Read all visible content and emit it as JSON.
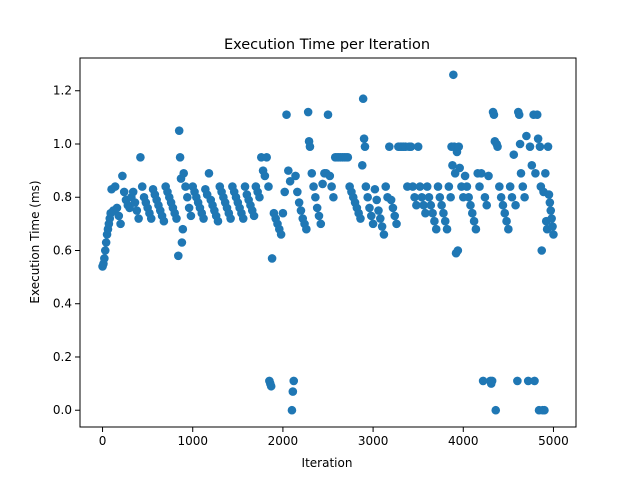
{
  "chart_data": {
    "type": "scatter",
    "title": "Execution Time per Iteration",
    "xlabel": "Iteration",
    "ylabel": "Execution Time (ms)",
    "xlim": [
      -250,
      5250
    ],
    "ylim": [
      -0.063,
      1.323
    ],
    "x_ticks": [
      0,
      1000,
      2000,
      3000,
      4000,
      5000
    ],
    "y_ticks": [
      0.0,
      0.2,
      0.4,
      0.6,
      0.8,
      1.0,
      1.2
    ],
    "x_tick_labels": [
      "0",
      "1000",
      "2000",
      "3000",
      "4000",
      "5000"
    ],
    "y_tick_labels": [
      "0.0",
      "0.2",
      "0.4",
      "0.6",
      "0.8",
      "1.0",
      "1.2"
    ],
    "grid": false,
    "marker_color": "#1f77b4",
    "series": [
      {
        "name": "",
        "points": [
          [
            0,
            0.54
          ],
          [
            10,
            0.55
          ],
          [
            20,
            0.57
          ],
          [
            30,
            0.6
          ],
          [
            40,
            0.63
          ],
          [
            50,
            0.66
          ],
          [
            60,
            0.68
          ],
          [
            70,
            0.7
          ],
          [
            80,
            0.72
          ],
          [
            90,
            0.74
          ],
          [
            100,
            0.83
          ],
          [
            120,
            0.75
          ],
          [
            140,
            0.84
          ],
          [
            160,
            0.76
          ],
          [
            180,
            0.73
          ],
          [
            200,
            0.7
          ],
          [
            220,
            0.88
          ],
          [
            240,
            0.82
          ],
          [
            260,
            0.79
          ],
          [
            280,
            0.77
          ],
          [
            300,
            0.76
          ],
          [
            320,
            0.8
          ],
          [
            340,
            0.82
          ],
          [
            360,
            0.78
          ],
          [
            380,
            0.75
          ],
          [
            400,
            0.72
          ],
          [
            420,
            0.95
          ],
          [
            440,
            0.84
          ],
          [
            460,
            0.8
          ],
          [
            480,
            0.78
          ],
          [
            500,
            0.76
          ],
          [
            520,
            0.74
          ],
          [
            540,
            0.72
          ],
          [
            560,
            0.83
          ],
          [
            580,
            0.81
          ],
          [
            600,
            0.79
          ],
          [
            620,
            0.77
          ],
          [
            640,
            0.75
          ],
          [
            660,
            0.73
          ],
          [
            680,
            0.71
          ],
          [
            700,
            0.84
          ],
          [
            720,
            0.82
          ],
          [
            740,
            0.8
          ],
          [
            760,
            0.78
          ],
          [
            780,
            0.76
          ],
          [
            800,
            0.74
          ],
          [
            820,
            0.72
          ],
          [
            840,
            0.58
          ],
          [
            850,
            1.05
          ],
          [
            860,
            0.95
          ],
          [
            870,
            0.87
          ],
          [
            880,
            0.63
          ],
          [
            890,
            0.68
          ],
          [
            900,
            0.89
          ],
          [
            920,
            0.84
          ],
          [
            940,
            0.8
          ],
          [
            960,
            0.76
          ],
          [
            980,
            0.73
          ],
          [
            1000,
            0.84
          ],
          [
            1020,
            0.82
          ],
          [
            1040,
            0.8
          ],
          [
            1060,
            0.78
          ],
          [
            1080,
            0.76
          ],
          [
            1100,
            0.74
          ],
          [
            1120,
            0.72
          ],
          [
            1140,
            0.83
          ],
          [
            1160,
            0.81
          ],
          [
            1180,
            0.89
          ],
          [
            1200,
            0.79
          ],
          [
            1220,
            0.77
          ],
          [
            1240,
            0.75
          ],
          [
            1260,
            0.73
          ],
          [
            1280,
            0.71
          ],
          [
            1300,
            0.84
          ],
          [
            1320,
            0.82
          ],
          [
            1340,
            0.8
          ],
          [
            1360,
            0.78
          ],
          [
            1380,
            0.76
          ],
          [
            1400,
            0.74
          ],
          [
            1420,
            0.72
          ],
          [
            1440,
            0.84
          ],
          [
            1460,
            0.82
          ],
          [
            1480,
            0.8
          ],
          [
            1500,
            0.78
          ],
          [
            1520,
            0.76
          ],
          [
            1540,
            0.74
          ],
          [
            1560,
            0.72
          ],
          [
            1580,
            0.84
          ],
          [
            1600,
            0.81
          ],
          [
            1620,
            0.79
          ],
          [
            1640,
            0.77
          ],
          [
            1660,
            0.75
          ],
          [
            1680,
            0.73
          ],
          [
            1700,
            0.84
          ],
          [
            1720,
            0.82
          ],
          [
            1740,
            0.8
          ],
          [
            1760,
            0.95
          ],
          [
            1780,
            0.9
          ],
          [
            1800,
            0.88
          ],
          [
            1820,
            0.95
          ],
          [
            1840,
            0.84
          ],
          [
            1850,
            0.11
          ],
          [
            1860,
            0.1
          ],
          [
            1870,
            0.09
          ],
          [
            1880,
            0.57
          ],
          [
            1900,
            0.74
          ],
          [
            1920,
            0.72
          ],
          [
            1940,
            0.7
          ],
          [
            1960,
            0.68
          ],
          [
            1980,
            0.66
          ],
          [
            2000,
            0.74
          ],
          [
            2020,
            0.82
          ],
          [
            2040,
            1.11
          ],
          [
            2060,
            0.9
          ],
          [
            2080,
            0.86
          ],
          [
            2100,
            0.0
          ],
          [
            2110,
            0.07
          ],
          [
            2120,
            0.11
          ],
          [
            2140,
            0.88
          ],
          [
            2160,
            0.82
          ],
          [
            2180,
            0.78
          ],
          [
            2200,
            0.75
          ],
          [
            2220,
            0.72
          ],
          [
            2240,
            0.7
          ],
          [
            2260,
            0.68
          ],
          [
            2280,
            1.12
          ],
          [
            2290,
            1.01
          ],
          [
            2300,
            0.99
          ],
          [
            2320,
            0.89
          ],
          [
            2340,
            0.84
          ],
          [
            2360,
            0.8
          ],
          [
            2380,
            0.76
          ],
          [
            2400,
            0.73
          ],
          [
            2420,
            0.7
          ],
          [
            2440,
            0.85
          ],
          [
            2460,
            0.89
          ],
          [
            2480,
            0.89
          ],
          [
            2500,
            1.11
          ],
          [
            2520,
            0.88
          ],
          [
            2540,
            0.84
          ],
          [
            2560,
            0.8
          ],
          [
            2580,
            0.95
          ],
          [
            2600,
            0.95
          ],
          [
            2620,
            0.95
          ],
          [
            2640,
            0.95
          ],
          [
            2660,
            0.95
          ],
          [
            2680,
            0.95
          ],
          [
            2700,
            0.95
          ],
          [
            2720,
            0.95
          ],
          [
            2740,
            0.84
          ],
          [
            2760,
            0.82
          ],
          [
            2780,
            0.8
          ],
          [
            2800,
            0.78
          ],
          [
            2820,
            0.76
          ],
          [
            2840,
            0.74
          ],
          [
            2860,
            0.72
          ],
          [
            2880,
            0.92
          ],
          [
            2890,
            1.17
          ],
          [
            2900,
            1.02
          ],
          [
            2910,
            0.99
          ],
          [
            2920,
            0.84
          ],
          [
            2940,
            0.8
          ],
          [
            2960,
            0.76
          ],
          [
            2980,
            0.73
          ],
          [
            3000,
            0.7
          ],
          [
            3020,
            0.83
          ],
          [
            3040,
            0.79
          ],
          [
            3060,
            0.75
          ],
          [
            3080,
            0.72
          ],
          [
            3100,
            0.69
          ],
          [
            3120,
            0.66
          ],
          [
            3140,
            0.84
          ],
          [
            3160,
            0.8
          ],
          [
            3180,
            0.99
          ],
          [
            3200,
            0.79
          ],
          [
            3220,
            0.76
          ],
          [
            3240,
            0.73
          ],
          [
            3260,
            0.7
          ],
          [
            3280,
            0.99
          ],
          [
            3300,
            0.99
          ],
          [
            3320,
            0.99
          ],
          [
            3340,
            0.99
          ],
          [
            3360,
            0.99
          ],
          [
            3380,
            0.84
          ],
          [
            3400,
            0.99
          ],
          [
            3420,
            0.99
          ],
          [
            3440,
            0.84
          ],
          [
            3460,
            0.8
          ],
          [
            3480,
            0.77
          ],
          [
            3500,
            0.99
          ],
          [
            3520,
            0.84
          ],
          [
            3540,
            0.8
          ],
          [
            3560,
            0.77
          ],
          [
            3580,
            0.74
          ],
          [
            3600,
            0.84
          ],
          [
            3620,
            0.8
          ],
          [
            3640,
            0.77
          ],
          [
            3660,
            0.74
          ],
          [
            3680,
            0.71
          ],
          [
            3700,
            0.68
          ],
          [
            3720,
            0.84
          ],
          [
            3740,
            0.8
          ],
          [
            3760,
            0.77
          ],
          [
            3780,
            0.74
          ],
          [
            3800,
            0.71
          ],
          [
            3820,
            0.68
          ],
          [
            3840,
            0.84
          ],
          [
            3860,
            0.8
          ],
          [
            3870,
            0.99
          ],
          [
            3880,
            0.92
          ],
          [
            3890,
            1.26
          ],
          [
            3900,
            0.99
          ],
          [
            3910,
            0.89
          ],
          [
            3920,
            0.59
          ],
          [
            3930,
            0.97
          ],
          [
            3940,
            0.6
          ],
          [
            3950,
            0.99
          ],
          [
            3960,
            0.91
          ],
          [
            3980,
            0.84
          ],
          [
            4000,
            0.8
          ],
          [
            4020,
            0.88
          ],
          [
            4040,
            0.84
          ],
          [
            4060,
            0.8
          ],
          [
            4080,
            0.77
          ],
          [
            4100,
            0.74
          ],
          [
            4120,
            0.71
          ],
          [
            4140,
            0.68
          ],
          [
            4160,
            0.89
          ],
          [
            4180,
            0.84
          ],
          [
            4200,
            0.89
          ],
          [
            4220,
            0.11
          ],
          [
            4240,
            0.8
          ],
          [
            4260,
            0.77
          ],
          [
            4280,
            0.88
          ],
          [
            4300,
            0.11
          ],
          [
            4310,
            0.1
          ],
          [
            4320,
            0.11
          ],
          [
            4330,
            1.12
          ],
          [
            4340,
            1.11
          ],
          [
            4350,
            1.01
          ],
          [
            4360,
            0.0
          ],
          [
            4370,
            1.0
          ],
          [
            4380,
            0.99
          ],
          [
            4400,
            0.84
          ],
          [
            4420,
            0.8
          ],
          [
            4440,
            0.77
          ],
          [
            4460,
            0.74
          ],
          [
            4480,
            0.71
          ],
          [
            4500,
            0.68
          ],
          [
            4520,
            0.84
          ],
          [
            4540,
            0.8
          ],
          [
            4560,
            0.96
          ],
          [
            4580,
            0.77
          ],
          [
            4600,
            0.11
          ],
          [
            4610,
            1.12
          ],
          [
            4620,
            1.11
          ],
          [
            4630,
            1.0
          ],
          [
            4640,
            0.89
          ],
          [
            4660,
            0.84
          ],
          [
            4680,
            0.8
          ],
          [
            4700,
            1.03
          ],
          [
            4720,
            0.11
          ],
          [
            4740,
            0.99
          ],
          [
            4760,
            0.92
          ],
          [
            4780,
            1.11
          ],
          [
            4790,
            0.11
          ],
          [
            4800,
            0.89
          ],
          [
            4820,
            1.11
          ],
          [
            4830,
            1.02
          ],
          [
            4840,
            0.0
          ],
          [
            4850,
            0.99
          ],
          [
            4860,
            0.84
          ],
          [
            4870,
            0.6
          ],
          [
            4880,
            0.0
          ],
          [
            4890,
            0.82
          ],
          [
            4900,
            0.0
          ],
          [
            4910,
            0.89
          ],
          [
            4920,
            0.71
          ],
          [
            4930,
            0.68
          ],
          [
            4940,
            0.99
          ],
          [
            4950,
            0.81
          ],
          [
            4960,
            0.78
          ],
          [
            4970,
            0.75
          ],
          [
            4980,
            0.72
          ],
          [
            4990,
            0.69
          ],
          [
            5000,
            0.66
          ]
        ]
      }
    ]
  }
}
